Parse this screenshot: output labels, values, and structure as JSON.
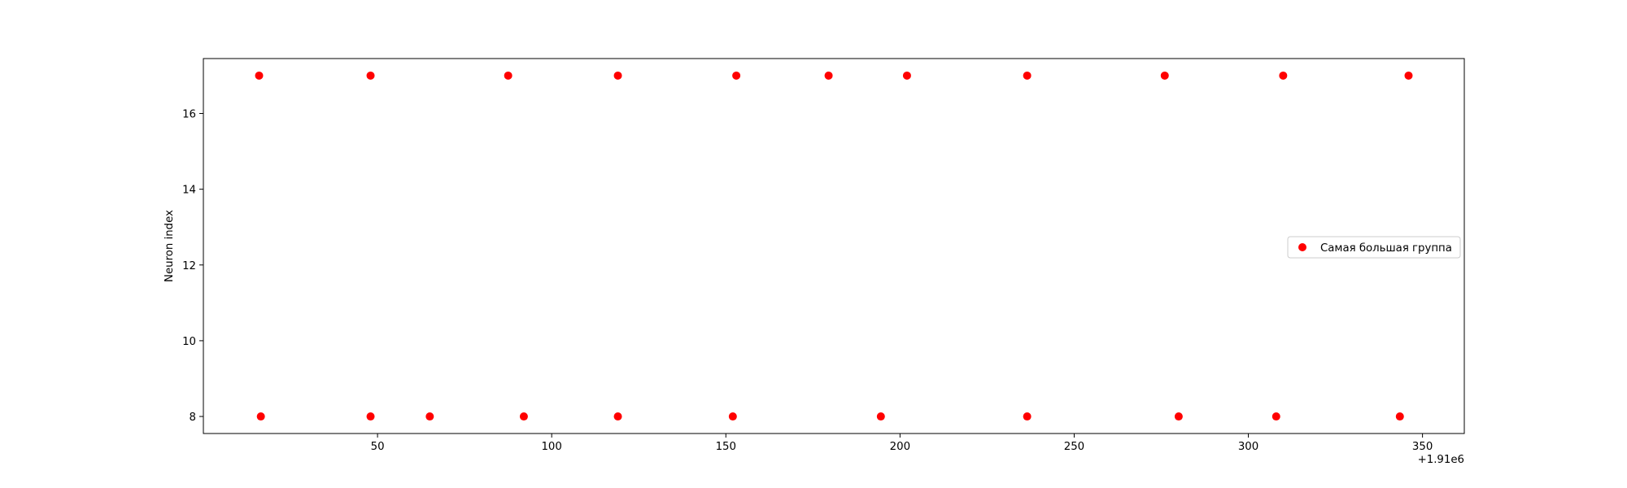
{
  "chart_data": {
    "type": "scatter",
    "title": "",
    "xlabel": "",
    "ylabel": "Neuron index",
    "x_offset_label": "+1.91e6",
    "xlim": [
      0,
      362
    ],
    "ylim": [
      7.55,
      17.45
    ],
    "x_ticks": [
      50,
      100,
      150,
      200,
      250,
      300,
      350
    ],
    "y_ticks": [
      8,
      10,
      12,
      14,
      16
    ],
    "grid": false,
    "legend_position": "center-right",
    "series": [
      {
        "name": "Самая большая группа",
        "color": "#ff0000",
        "points": [
          {
            "x": 16,
            "y": 17
          },
          {
            "x": 48,
            "y": 17
          },
          {
            "x": 87.5,
            "y": 17
          },
          {
            "x": 119,
            "y": 17
          },
          {
            "x": 153,
            "y": 17
          },
          {
            "x": 179.5,
            "y": 17
          },
          {
            "x": 202,
            "y": 17
          },
          {
            "x": 236.5,
            "y": 17
          },
          {
            "x": 276,
            "y": 17
          },
          {
            "x": 310,
            "y": 17
          },
          {
            "x": 346,
            "y": 17
          },
          {
            "x": 16.5,
            "y": 8
          },
          {
            "x": 48,
            "y": 8
          },
          {
            "x": 65,
            "y": 8
          },
          {
            "x": 92,
            "y": 8
          },
          {
            "x": 119,
            "y": 8
          },
          {
            "x": 152,
            "y": 8
          },
          {
            "x": 194.5,
            "y": 8
          },
          {
            "x": 236.5,
            "y": 8
          },
          {
            "x": 280,
            "y": 8
          },
          {
            "x": 308,
            "y": 8
          },
          {
            "x": 343.5,
            "y": 8
          }
        ]
      }
    ]
  }
}
